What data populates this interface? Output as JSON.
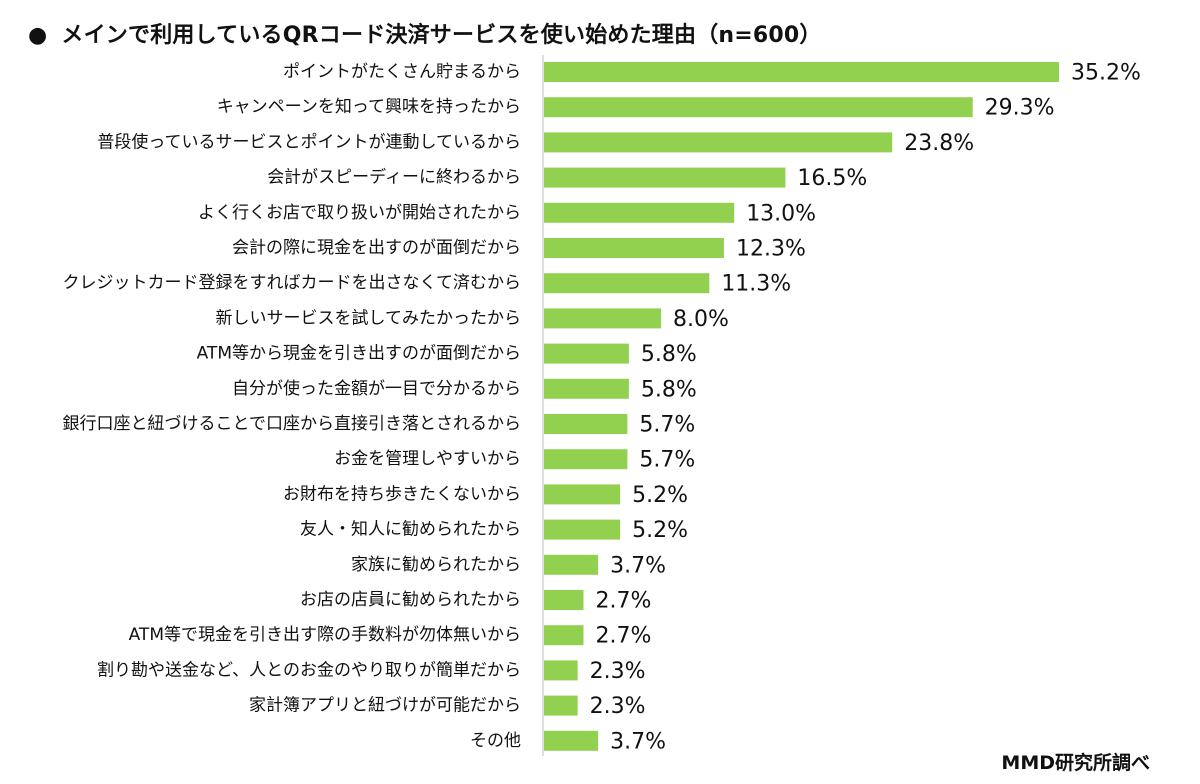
{
  "title": {
    "bullet": "●",
    "text": "メインで利用しているQRコード決済サービスを使い始めた理由（n=600）"
  },
  "source": "MMD研究所調べ",
  "colors": {
    "bar": "#92D050",
    "axis": "#BFBFBF"
  },
  "chart_data": {
    "type": "bar",
    "orientation": "horizontal",
    "title": "メインで利用しているQRコード決済サービスを使い始めた理由（n=600）",
    "unit": "%",
    "xlim": [
      0,
      35.2
    ],
    "grid": false,
    "legend": "none",
    "categories": [
      "ポイントがたくさん貯まるから",
      "キャンペーンを知って興味を持ったから",
      "普段使っているサービスとポイントが連動しているから",
      "会計がスピーディーに終わるから",
      "よく行くお店で取り扱いが開始されたから",
      "会計の際に現金を出すのが面倒だから",
      "クレジットカード登録をすればカードを出さなくて済むから",
      "新しいサービスを試してみたかったから",
      "ATM等から現金を引き出すのが面倒だから",
      "自分が使った金額が一目で分かるから",
      "銀行口座と紐づけることで口座から直接引き落とされるから",
      "お金を管理しやすいから",
      "お財布を持ち歩きたくないから",
      "友人・知人に勧められたから",
      "家族に勧められたから",
      "お店の店員に勧められたから",
      "ATM等で現金を引き出す際の手数料が勿体無いから",
      "割り勘や送金など、人とのお金のやり取りが簡単だから",
      "家計簿アプリと紐づけが可能だから",
      "その他"
    ],
    "values": [
      35.2,
      29.3,
      23.8,
      16.5,
      13.0,
      12.3,
      11.3,
      8.0,
      5.8,
      5.8,
      5.7,
      5.7,
      5.2,
      5.2,
      3.7,
      2.7,
      2.7,
      2.3,
      2.3,
      3.7
    ],
    "value_labels": [
      "35.2%",
      "29.3%",
      "23.8%",
      "16.5%",
      "13.0%",
      "12.3%",
      "11.3%",
      "8.0%",
      "5.8%",
      "5.8%",
      "5.7%",
      "5.7%",
      "5.2%",
      "5.2%",
      "3.7%",
      "2.7%",
      "2.7%",
      "2.3%",
      "2.3%",
      "3.7%"
    ]
  }
}
